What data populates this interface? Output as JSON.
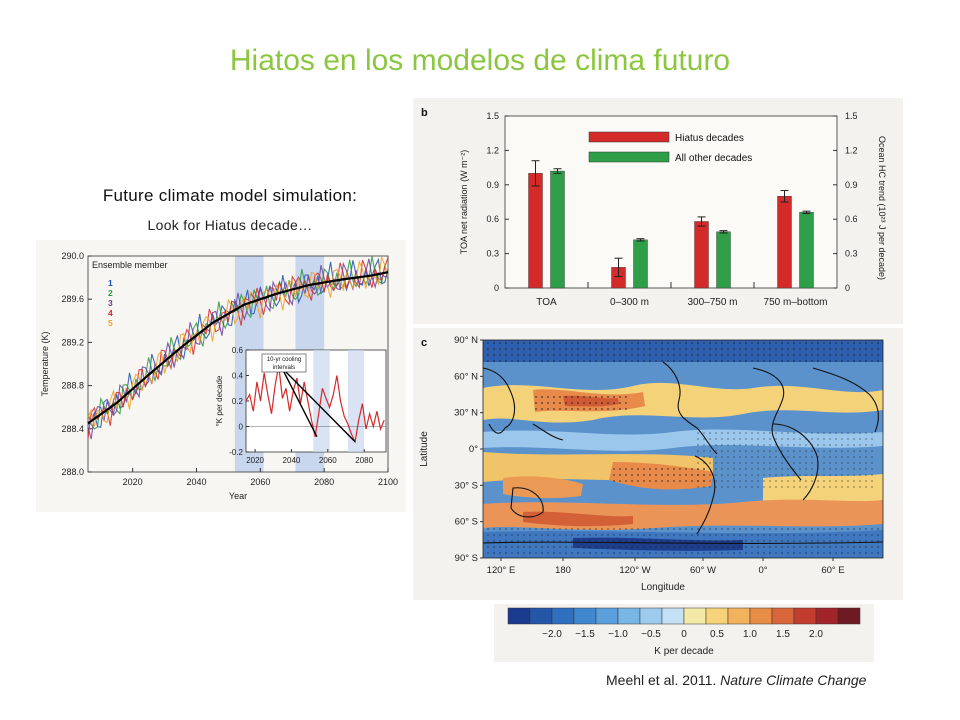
{
  "slide": {
    "title": "Hiatos en los modelos de clima futuro",
    "subtitle": "Future climate model simulation:",
    "note": "Look for Hiatus decade…",
    "citation_authors": "Meehl et al. 2011.",
    "citation_journal": "Nature Climate Change"
  },
  "colors": {
    "title": "#8cc63e",
    "hiatus": "#d42a2a",
    "other": "#2e9e48",
    "ens": [
      "#1f4fb0",
      "#2a9a3c",
      "#6b3fa0",
      "#d42a2a",
      "#f0a020"
    ],
    "hiatus_band": "#c9d7ee",
    "map_ocean_cool": "#4a86c6",
    "map_warm": "#e8935a"
  },
  "chart_data": [
    {
      "type": "line",
      "xlabel": "Year",
      "ylabel": "Temperature (K)",
      "xlim": [
        2006,
        2100
      ],
      "ylim": [
        288.0,
        290.0
      ],
      "x_ticks": [
        "2020",
        "2040",
        "2060",
        "2080",
        "2100"
      ],
      "y_ticks": [
        "288.0",
        "288.4",
        "288.8",
        "289.2",
        "289.6",
        "290.0"
      ],
      "legend_title": "Ensemble member",
      "legend": [
        "1",
        "2",
        "3",
        "4",
        "5"
      ],
      "hiatus_spans": [
        [
          2052,
          2061
        ],
        [
          2071,
          2080
        ]
      ],
      "ensemble_mean": {
        "x": [
          2006,
          2015,
          2025,
          2035,
          2045,
          2055,
          2065,
          2075,
          2085,
          2095,
          2100
        ],
        "y": [
          288.45,
          288.64,
          288.9,
          289.15,
          289.38,
          289.55,
          289.65,
          289.73,
          289.78,
          289.82,
          289.85
        ]
      },
      "inset": {
        "type": "line",
        "ylabel": "°K per decade",
        "xlim": [
          2015,
          2092
        ],
        "ylim": [
          -0.2,
          0.6
        ],
        "x_ticks": [
          "2020",
          "2040",
          "2060",
          "2080"
        ],
        "y_ticks": [
          "-0.2",
          "0",
          "0.2",
          "0.4",
          "0.6"
        ],
        "annotation": "10-yr cooling intervals",
        "x": [
          2015,
          2017,
          2019,
          2021,
          2023,
          2025,
          2027,
          2029,
          2031,
          2033,
          2035,
          2037,
          2039,
          2041,
          2043,
          2045,
          2047,
          2049,
          2051,
          2053,
          2055,
          2057,
          2059,
          2061,
          2063,
          2065,
          2067,
          2069,
          2071,
          2073,
          2075,
          2077,
          2079,
          2081,
          2083,
          2085,
          2087,
          2089,
          2091
        ],
        "y": [
          0.2,
          0.25,
          0.12,
          0.35,
          0.2,
          0.42,
          0.25,
          0.1,
          0.32,
          0.48,
          0.22,
          0.3,
          0.12,
          0.28,
          0.38,
          0.18,
          0.35,
          0.2,
          0.05,
          -0.08,
          0.1,
          0.3,
          0.22,
          0.15,
          0.25,
          0.4,
          0.2,
          0.08,
          0.02,
          -0.06,
          -0.12,
          0.05,
          0.18,
          -0.02,
          0.1,
          0.0,
          0.12,
          -0.02,
          0.05
        ]
      }
    },
    {
      "type": "bar",
      "panel_label": "b",
      "categories": [
        "TOA",
        "0–300 m",
        "300–750 m",
        "750 m–bottom"
      ],
      "series": [
        {
          "name": "Hiatus decades",
          "values": [
            1.0,
            0.18,
            0.58,
            0.8
          ],
          "errors": [
            0.11,
            0.08,
            0.04,
            0.05
          ]
        },
        {
          "name": "All other decades",
          "values": [
            1.02,
            0.42,
            0.49,
            0.66
          ],
          "errors": [
            0.02,
            0.01,
            0.01,
            0.01
          ]
        }
      ],
      "ylabel": "TOA net radiation (W m⁻²)",
      "ylabel_right": "Ocean HC trend (10²³ J per decade)",
      "ylim": [
        0,
        1.5
      ],
      "y_ticks": [
        "0",
        "0.3",
        "0.6",
        "0.9",
        "1.2",
        "1.5"
      ]
    },
    {
      "type": "heatmap",
      "panel_label": "c",
      "xlabel": "Longitude",
      "ylabel": "Latitude",
      "x_ticks": [
        "120° E",
        "180",
        "120° W",
        "60° W",
        "0°",
        "60° E"
      ],
      "y_ticks": [
        "90° N",
        "60° N",
        "30° N",
        "0°",
        "30° S",
        "60° S",
        "90° S"
      ],
      "colorbar_label": "K per decade",
      "colorbar_ticks": [
        "−2.0",
        "−1.5",
        "−1.0",
        "−0.5",
        "0",
        "0.5",
        "1.0",
        "1.5",
        "2.0"
      ],
      "colorbar_colors": [
        "#1a3a8f",
        "#2356a8",
        "#2f6fbe",
        "#3f87cf",
        "#5a9fdb",
        "#78b6e4",
        "#9ccbee",
        "#c3e0f4",
        "#f5e9a8",
        "#f6d37a",
        "#f2b35c",
        "#e88d45",
        "#d9663a",
        "#c23d2f",
        "#a0242a",
        "#6e1a22"
      ]
    }
  ]
}
